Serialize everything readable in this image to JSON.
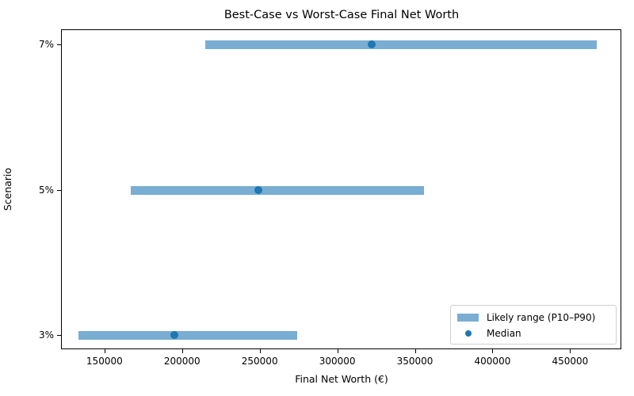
{
  "chart_data": {
    "type": "bar",
    "subtype": "horizontal-range-with-median",
    "title": "Best-Case vs Worst-Case Final Net Worth",
    "xlabel": "Final Net Worth (€)",
    "ylabel": "Scenario",
    "categories": [
      "3%",
      "5%",
      "7%"
    ],
    "series": [
      {
        "name": "Likely range (P10–P90)",
        "type": "range",
        "low": [
          133000,
          167000,
          215000
        ],
        "high": [
          274000,
          356000,
          467000
        ]
      },
      {
        "name": "Median",
        "type": "scatter",
        "values": [
          195000,
          249000,
          322000
        ]
      }
    ],
    "xlim": [
      122000,
      483000
    ],
    "xticks": [
      150000,
      200000,
      250000,
      300000,
      350000,
      400000,
      450000
    ],
    "xtick_labels": [
      "150000",
      "200000",
      "250000",
      "300000",
      "350000",
      "400000",
      "450000"
    ],
    "grid": false,
    "legend_position": "lower right",
    "colors": {
      "range": "#1f77b4",
      "range_alpha": 0.6,
      "median": "#1f77b4"
    }
  },
  "legend": {
    "range_label": "Likely range (P10–P90)",
    "median_label": "Median"
  }
}
